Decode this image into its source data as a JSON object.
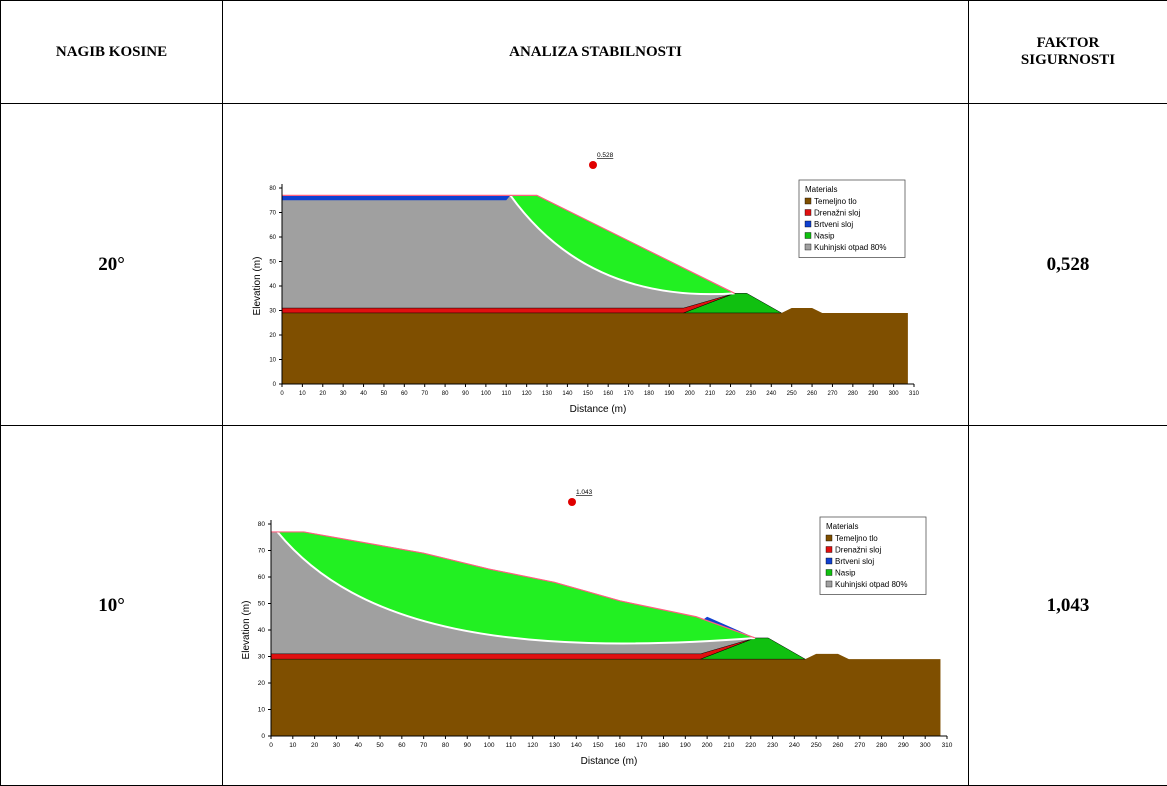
{
  "table": {
    "headers": [
      "NAGIB KOSINE",
      "ANALIZA STABILNOSTI",
      "FAKTOR SIGURNOSTI"
    ],
    "rows": [
      {
        "slope": "20°",
        "factor": "0,528",
        "figure": {
          "fos_label": "0.528",
          "xlabel": "Distance (m)",
          "ylabel": "Elevation (m)",
          "xlim": [
            0,
            310
          ],
          "ylim": [
            0,
            80
          ],
          "xticks": [
            0,
            10,
            20,
            30,
            40,
            50,
            60,
            70,
            80,
            90,
            100,
            110,
            120,
            130,
            140,
            150,
            160,
            170,
            180,
            190,
            200,
            210,
            220,
            230,
            240,
            250,
            260,
            270,
            280,
            290,
            300,
            310
          ],
          "yticks": [
            0,
            10,
            20,
            30,
            40,
            50,
            60,
            70,
            80
          ],
          "legend": {
            "title": "Materials",
            "items": [
              {
                "label": "Temeljno tlo",
                "color": "#7f4f00"
              },
              {
                "label": "Drenažni sloj",
                "color": "#e01010"
              },
              {
                "label": "Brtveni sloj",
                "color": "#1040d0"
              },
              {
                "label": "Nasip",
                "color": "#10c010"
              },
              {
                "label": "Kuhinjski otpad 80%",
                "color": "#a0a0a0"
              }
            ]
          }
        }
      },
      {
        "slope": "10°",
        "factor": "1,043",
        "figure": {
          "fos_label": "1.043",
          "xlabel": "Distance (m)",
          "ylabel": "Elevation (m)",
          "xlim": [
            0,
            310
          ],
          "ylim": [
            0,
            80
          ],
          "xticks": [
            0,
            10,
            20,
            30,
            40,
            50,
            60,
            70,
            80,
            90,
            100,
            110,
            120,
            130,
            140,
            150,
            160,
            170,
            180,
            190,
            200,
            210,
            220,
            230,
            240,
            250,
            260,
            270,
            280,
            290,
            300,
            310
          ],
          "yticks": [
            0,
            10,
            20,
            30,
            40,
            50,
            60,
            70,
            80
          ],
          "legend": {
            "title": "Materials",
            "items": [
              {
                "label": "Temeljno tlo",
                "color": "#7f4f00"
              },
              {
                "label": "Drenažni sloj",
                "color": "#e01010"
              },
              {
                "label": "Brtveni sloj",
                "color": "#1040d0"
              },
              {
                "label": "Nasip",
                "color": "#10c010"
              },
              {
                "label": "Kuhinjski otpad 80%",
                "color": "#a0a0a0"
              }
            ]
          }
        }
      }
    ]
  }
}
